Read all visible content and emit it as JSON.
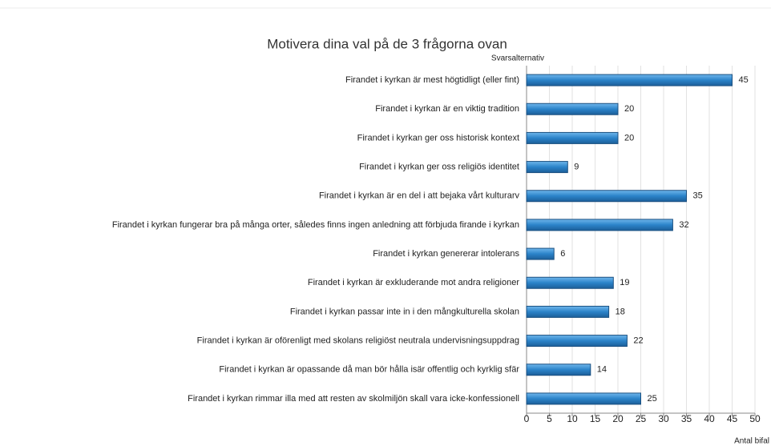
{
  "chart_data": {
    "type": "bar",
    "orientation": "horizontal",
    "title": "Motivera dina val på de 3 frågorna ovan",
    "ylabel": "Svarsalternativ",
    "xlabel": "Antal bifal",
    "categories": [
      "Firandet i kyrkan är mest högtidligt (eller fint)",
      "Firandet i kyrkan är en viktig tradition",
      "Firandet i kyrkan ger oss historisk kontext",
      "Firandet i kyrkan ger oss religiös identitet",
      "Firandet i kyrkan är en del i att bejaka vårt kulturarv",
      "Firandet i kyrkan fungerar bra på många orter, således finns ingen anledning att förbjuda firande i kyrkan",
      "Firandet i kyrkan genererar intolerans",
      "Firandet i kyrkan är exkluderande mot andra religioner",
      "Firandet i kyrkan passar inte in i den mångkulturella skolan",
      "Firandet i kyrkan är oförenligt med skolans religiöst neutrala undervisningsuppdrag",
      "Firandet i kyrkan är opassande då man bör hålla isär offentlig och kyrklig sfär",
      "Firandet i kyrkan rimmar illa med att resten av skolmiljön skall vara icke-konfessionell"
    ],
    "values": [
      45,
      20,
      20,
      9,
      35,
      32,
      6,
      19,
      18,
      22,
      14,
      25
    ],
    "color": "#2b83c9",
    "xlim": [
      0,
      50
    ],
    "xticks": [
      0,
      5,
      10,
      15,
      20,
      25,
      30,
      35,
      40,
      45,
      50
    ],
    "grid": true
  }
}
